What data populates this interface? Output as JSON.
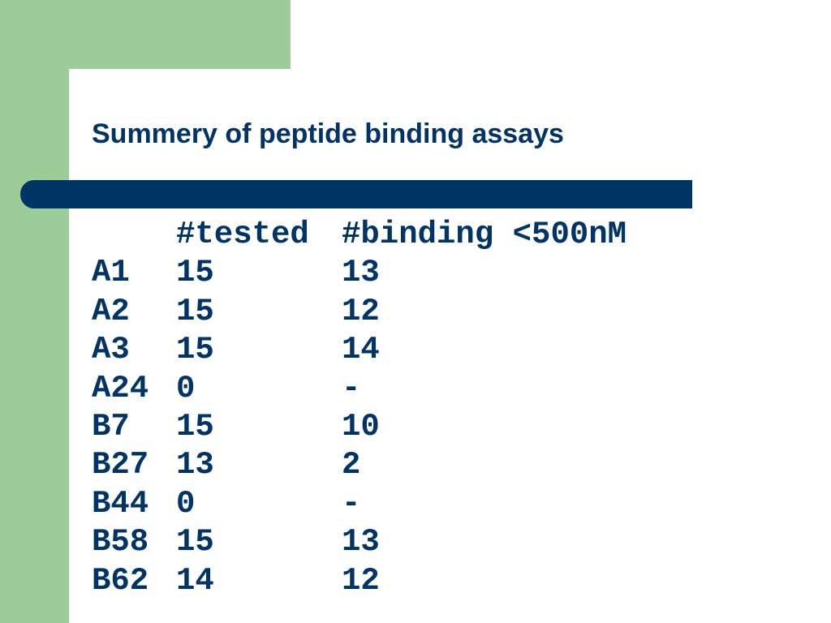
{
  "title": "Summery of peptide binding assays",
  "table": {
    "header": [
      "#tested",
      "#binding <500nM"
    ],
    "rows": [
      [
        "A1",
        "15",
        "13"
      ],
      [
        "A2",
        "15",
        "12"
      ],
      [
        "A3",
        "15",
        "14"
      ],
      [
        "A24",
        "0",
        "-"
      ],
      [
        "B7",
        "15",
        "10"
      ],
      [
        "B27",
        "13",
        "2"
      ],
      [
        "B44",
        "0",
        "-"
      ],
      [
        "B58",
        "15",
        "13"
      ],
      [
        "B62",
        "14",
        "12"
      ]
    ]
  }
}
